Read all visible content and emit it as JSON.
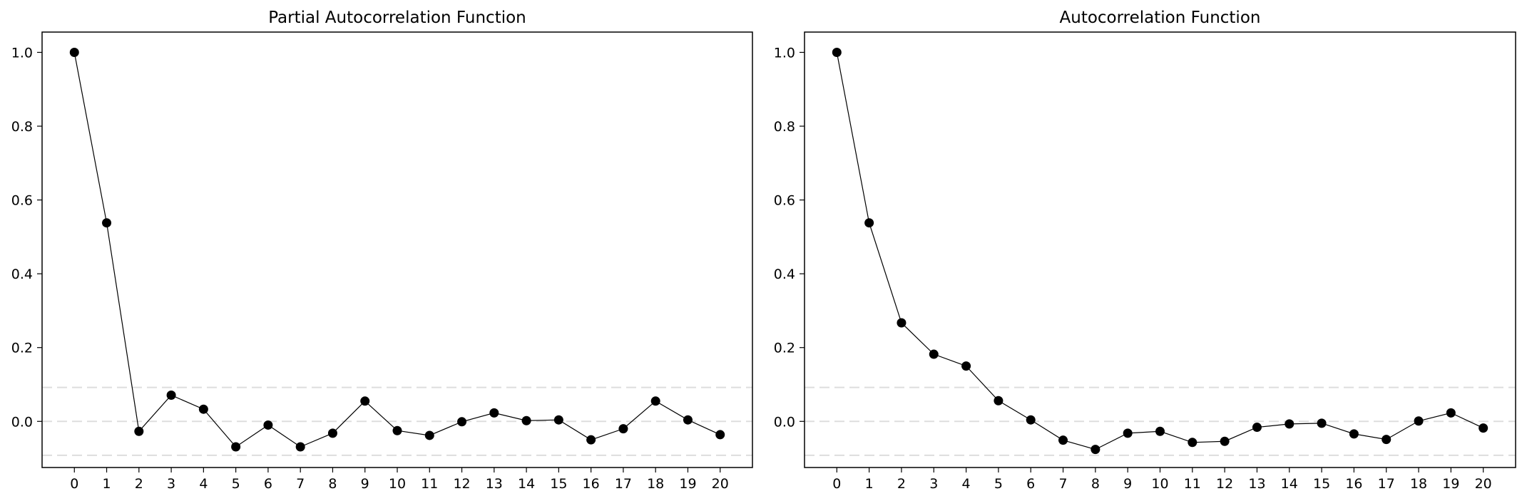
{
  "chart_data": [
    {
      "type": "line",
      "title": "Partial Autocorrelation Function",
      "x": [
        0,
        1,
        2,
        3,
        4,
        5,
        6,
        7,
        8,
        9,
        10,
        11,
        12,
        13,
        14,
        15,
        16,
        17,
        18,
        19,
        20
      ],
      "series": [
        {
          "values": [
            1.0,
            0.538,
            -0.027,
            0.071,
            0.033,
            -0.069,
            -0.01,
            -0.069,
            -0.032,
            0.055,
            -0.025,
            -0.038,
            -0.001,
            0.023,
            0.002,
            0.004,
            -0.05,
            -0.02,
            0.055,
            0.004,
            -0.036
          ]
        }
      ],
      "confidence_band": 0.092,
      "ylim": [
        -0.125,
        1.055
      ],
      "yticks": [
        0.0,
        0.2,
        0.4,
        0.6,
        0.8,
        1.0
      ],
      "ytick_labels": [
        "0.0",
        "0.2",
        "0.4",
        "0.6",
        "0.8",
        "1.0"
      ],
      "xtick_labels": [
        "0",
        "1",
        "2",
        "3",
        "4",
        "5",
        "6",
        "7",
        "8",
        "9",
        "10",
        "11",
        "12",
        "13",
        "14",
        "15",
        "16",
        "17",
        "18",
        "19",
        "20"
      ],
      "grid": false,
      "colors": {
        "line": "#000000",
        "marker": "#000000",
        "band": "#dddddd"
      }
    },
    {
      "type": "line",
      "title": "Autocorrelation Function",
      "x": [
        0,
        1,
        2,
        3,
        4,
        5,
        6,
        7,
        8,
        9,
        10,
        11,
        12,
        13,
        14,
        15,
        16,
        17,
        18,
        19,
        20
      ],
      "series": [
        {
          "values": [
            1.0,
            0.538,
            0.267,
            0.182,
            0.15,
            0.056,
            0.004,
            -0.051,
            -0.076,
            -0.032,
            -0.027,
            -0.057,
            -0.054,
            -0.016,
            -0.007,
            -0.005,
            -0.034,
            -0.049,
            0.001,
            0.023,
            -0.018
          ]
        }
      ],
      "confidence_band": 0.092,
      "ylim": [
        -0.125,
        1.055
      ],
      "yticks": [
        0.0,
        0.2,
        0.4,
        0.6,
        0.8,
        1.0
      ],
      "ytick_labels": [
        "0.0",
        "0.2",
        "0.4",
        "0.6",
        "0.8",
        "1.0"
      ],
      "xtick_labels": [
        "0",
        "1",
        "2",
        "3",
        "4",
        "5",
        "6",
        "7",
        "8",
        "9",
        "10",
        "11",
        "12",
        "13",
        "14",
        "15",
        "16",
        "17",
        "18",
        "19",
        "20"
      ],
      "grid": false,
      "colors": {
        "line": "#000000",
        "marker": "#000000",
        "band": "#dddddd"
      }
    }
  ]
}
